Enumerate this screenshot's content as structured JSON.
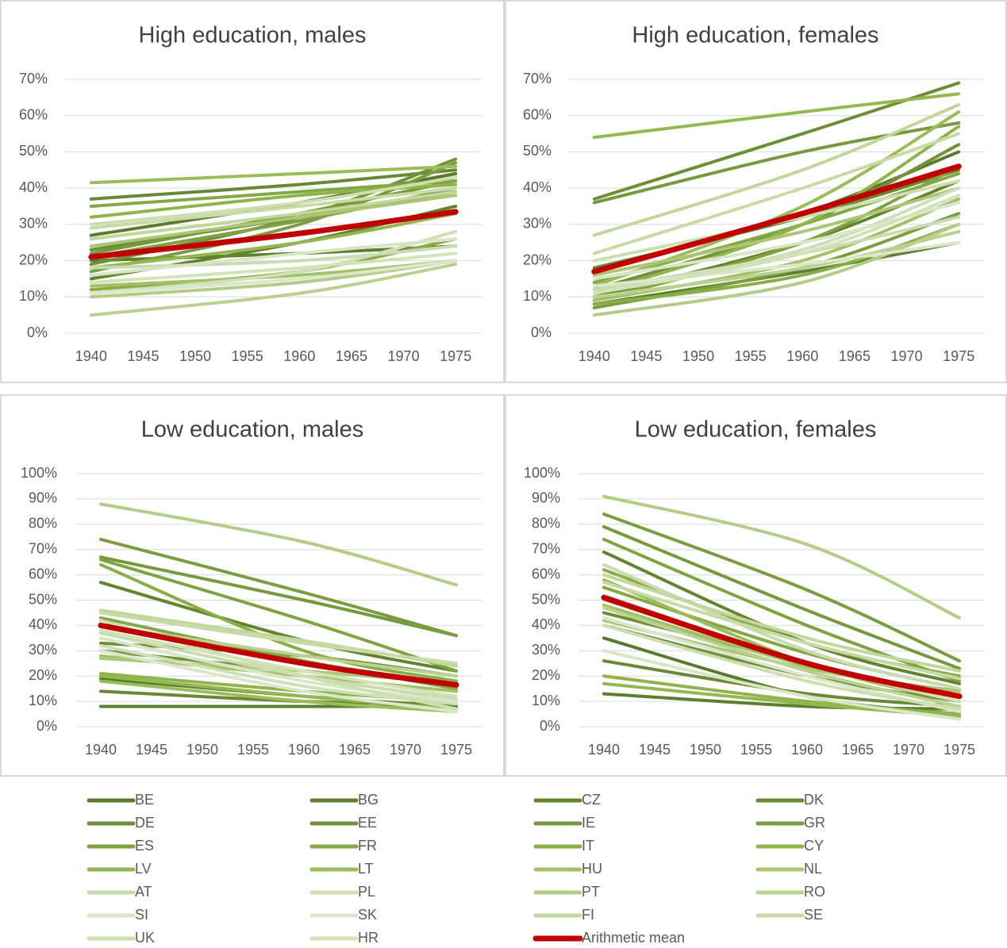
{
  "chart_data": [
    {
      "type": "line",
      "title": "High education, males",
      "x": [
        1940,
        1960,
        1975
      ],
      "xlim": [
        1937.5,
        1977.5
      ],
      "xticks": [
        1940,
        1945,
        1950,
        1955,
        1960,
        1965,
        1970,
        1975
      ],
      "ylim": [
        0,
        70
      ],
      "yticks": [
        {
          "value": 0,
          "label": "0%"
        },
        {
          "value": 10,
          "label": "10%"
        },
        {
          "value": 20,
          "label": "20%"
        },
        {
          "value": 30,
          "label": "30%"
        },
        {
          "value": 40,
          "label": "40%"
        },
        {
          "value": 50,
          "label": "50%"
        },
        {
          "value": 60,
          "label": "60%"
        },
        {
          "value": 70,
          "label": "70%"
        }
      ],
      "series": [
        {
          "values": [
            27,
            36,
            44
          ]
        },
        {
          "values": [
            20,
            22,
            24
          ]
        },
        {
          "values": [
            15,
            25,
            35
          ]
        },
        {
          "values": [
            37,
            41,
            45
          ]
        },
        {
          "values": [
            23,
            32,
            39
          ]
        },
        {
          "values": [
            19,
            32,
            48
          ]
        },
        {
          "values": [
            22,
            33,
            42
          ]
        },
        {
          "values": [
            17,
            30,
            47
          ]
        },
        {
          "values": [
            21,
            31,
            40
          ]
        },
        {
          "values": [
            35,
            39,
            42
          ]
        },
        {
          "values": [
            12,
            17,
            26
          ]
        },
        {
          "values": [
            32,
            38,
            41
          ]
        },
        {
          "values": [
            18,
            25,
            33
          ]
        },
        {
          "values": [
            41.5,
            44,
            46
          ]
        },
        {
          "values": [
            13,
            16,
            20
          ]
        },
        {
          "values": [
            24,
            32,
            38
          ]
        },
        {
          "values": [
            18,
            20,
            24
          ]
        },
        {
          "values": [
            11,
            17,
            28
          ]
        },
        {
          "values": [
            10,
            14,
            20
          ]
        },
        {
          "values": [
            5,
            11,
            19
          ]
        },
        {
          "values": [
            16,
            22,
            26
          ]
        },
        {
          "values": [
            11,
            15,
            20
          ]
        },
        {
          "values": [
            26,
            33,
            39
          ]
        },
        {
          "values": [
            29,
            35,
            40
          ]
        },
        {
          "values": [
            30,
            36,
            43
          ]
        },
        {
          "values": [
            14,
            18,
            22
          ]
        },
        {
          "values": [
            21,
            27.5,
            33.5
          ]
        }
      ]
    },
    {
      "type": "line",
      "title": "High education, females",
      "x": [
        1940,
        1960,
        1975
      ],
      "xlim": [
        1937.5,
        1977.5
      ],
      "xticks": [
        1940,
        1945,
        1950,
        1955,
        1960,
        1965,
        1970,
        1975
      ],
      "ylim": [
        0,
        70
      ],
      "yticks": [
        {
          "value": 0,
          "label": "0%"
        },
        {
          "value": 10,
          "label": "10%"
        },
        {
          "value": 20,
          "label": "20%"
        },
        {
          "value": 30,
          "label": "30%"
        },
        {
          "value": 40,
          "label": "40%"
        },
        {
          "value": 50,
          "label": "50%"
        },
        {
          "value": 60,
          "label": "60%"
        },
        {
          "value": 70,
          "label": "70%"
        }
      ],
      "series": [
        {
          "values": [
            17,
            33,
            50
          ]
        },
        {
          "values": [
            8,
            17,
            25
          ]
        },
        {
          "values": [
            10,
            25,
            42
          ]
        },
        {
          "values": [
            18,
            32,
            45
          ]
        },
        {
          "values": [
            37,
            55,
            69
          ]
        },
        {
          "values": [
            12,
            30,
            52
          ]
        },
        {
          "values": [
            36,
            50,
            58
          ]
        },
        {
          "values": [
            7,
            18,
            33
          ]
        },
        {
          "values": [
            9,
            25,
            46
          ]
        },
        {
          "values": [
            14,
            30,
            44
          ]
        },
        {
          "values": [
            8,
            16,
            30
          ]
        },
        {
          "values": [
            11,
            30,
            57
          ]
        },
        {
          "values": [
            54,
            61,
            66
          ]
        },
        {
          "values": [
            13,
            35,
            61
          ]
        },
        {
          "values": [
            9,
            20,
            37
          ]
        },
        {
          "values": [
            16,
            28,
            40
          ]
        },
        {
          "values": [
            12,
            22,
            32
          ]
        },
        {
          "values": [
            11,
            23,
            40
          ]
        },
        {
          "values": [
            5,
            14,
            30
          ]
        },
        {
          "values": [
            10,
            18,
            28
          ]
        },
        {
          "values": [
            15,
            25,
            36
          ]
        },
        {
          "values": [
            13,
            19,
            25
          ]
        },
        {
          "values": [
            27,
            45,
            63
          ]
        },
        {
          "values": [
            22,
            40,
            55
          ]
        },
        {
          "values": [
            20,
            32,
            42
          ]
        },
        {
          "values": [
            11,
            22,
            38
          ]
        },
        {
          "values": [
            17,
            33,
            46
          ]
        }
      ]
    },
    {
      "type": "line",
      "title": "Low education, males",
      "x": [
        1940,
        1960,
        1975
      ],
      "xlim": [
        1937.5,
        1977.5
      ],
      "xticks": [
        1940,
        1945,
        1950,
        1955,
        1960,
        1965,
        1970,
        1975
      ],
      "ylim": [
        0,
        100
      ],
      "yticks": [
        {
          "value": 0,
          "label": "0%"
        },
        {
          "value": 10,
          "label": "10%"
        },
        {
          "value": 20,
          "label": "20%"
        },
        {
          "value": 30,
          "label": "30%"
        },
        {
          "value": 40,
          "label": "40%"
        },
        {
          "value": 50,
          "label": "50%"
        },
        {
          "value": 60,
          "label": "60%"
        },
        {
          "value": 70,
          "label": "70%"
        },
        {
          "value": 80,
          "label": "80%"
        },
        {
          "value": 90,
          "label": "90%"
        },
        {
          "value": 100,
          "label": "100%"
        }
      ],
      "series": [
        {
          "values": [
            19,
            12,
            8
          ]
        },
        {
          "values": [
            8,
            8,
            8
          ]
        },
        {
          "values": [
            57,
            34,
            22
          ]
        },
        {
          "values": [
            14,
            10,
            9
          ]
        },
        {
          "values": [
            33,
            28,
            20
          ]
        },
        {
          "values": [
            30,
            22,
            18
          ]
        },
        {
          "values": [
            67,
            50,
            36
          ]
        },
        {
          "values": [
            74,
            53,
            36
          ]
        },
        {
          "values": [
            66,
            42,
            22
          ]
        },
        {
          "values": [
            43,
            26,
            15
          ]
        },
        {
          "values": [
            64,
            30,
            18
          ]
        },
        {
          "values": [
            21,
            14,
            10
          ]
        },
        {
          "values": [
            20,
            12,
            7
          ]
        },
        {
          "values": [
            18,
            10,
            6
          ]
        },
        {
          "values": [
            28,
            20,
            14
          ]
        },
        {
          "values": [
            27,
            22,
            17
          ]
        },
        {
          "values": [
            37,
            20,
            11
          ]
        },
        {
          "values": [
            32,
            16,
            9
          ]
        },
        {
          "values": [
            88,
            73,
            56
          ]
        },
        {
          "values": [
            40,
            28,
            20
          ]
        },
        {
          "values": [
            35,
            18,
            10
          ]
        },
        {
          "values": [
            30,
            14,
            6
          ]
        },
        {
          "values": [
            46,
            34,
            24
          ]
        },
        {
          "values": [
            45,
            33,
            25
          ]
        },
        {
          "values": [
            42,
            20,
            7
          ]
        },
        {
          "values": [
            38,
            22,
            12
          ]
        },
        {
          "values": [
            40,
            25,
            16.5
          ]
        }
      ]
    },
    {
      "type": "line",
      "title": "Low education, females",
      "x": [
        1940,
        1960,
        1975
      ],
      "xlim": [
        1937.5,
        1977.5
      ],
      "xticks": [
        1940,
        1945,
        1950,
        1955,
        1960,
        1965,
        1970,
        1975
      ],
      "ylim": [
        0,
        100
      ],
      "yticks": [
        {
          "value": 0,
          "label": "0%"
        },
        {
          "value": 10,
          "label": "10%"
        },
        {
          "value": 20,
          "label": "20%"
        },
        {
          "value": 30,
          "label": "30%"
        },
        {
          "value": 40,
          "label": "40%"
        },
        {
          "value": 50,
          "label": "50%"
        },
        {
          "value": 60,
          "label": "60%"
        },
        {
          "value": 70,
          "label": "70%"
        },
        {
          "value": 80,
          "label": "80%"
        },
        {
          "value": 90,
          "label": "90%"
        },
        {
          "value": 100,
          "label": "100%"
        }
      ],
      "series": [
        {
          "values": [
            35,
            12,
            5
          ]
        },
        {
          "values": [
            13,
            8,
            7
          ]
        },
        {
          "values": [
            69,
            33,
            17
          ]
        },
        {
          "values": [
            26,
            13,
            8
          ]
        },
        {
          "values": [
            45,
            25,
            12
          ]
        },
        {
          "values": [
            40,
            20,
            10
          ]
        },
        {
          "values": [
            79,
            46,
            23
          ]
        },
        {
          "values": [
            84,
            54,
            26
          ]
        },
        {
          "values": [
            74,
            40,
            18
          ]
        },
        {
          "values": [
            55,
            29,
            15
          ]
        },
        {
          "values": [
            62,
            33,
            20
          ]
        },
        {
          "values": [
            20,
            10,
            5
          ]
        },
        {
          "values": [
            17,
            9,
            4
          ]
        },
        {
          "values": [
            58,
            25,
            10
          ]
        },
        {
          "values": [
            48,
            24,
            12
          ]
        },
        {
          "values": [
            42,
            23,
            14
          ]
        },
        {
          "values": [
            64,
            30,
            15
          ]
        },
        {
          "values": [
            52,
            25,
            12
          ]
        },
        {
          "values": [
            91,
            72,
            43
          ]
        },
        {
          "values": [
            47,
            22,
            8
          ]
        },
        {
          "values": [
            30,
            12,
            3
          ]
        },
        {
          "values": [
            43,
            20,
            6
          ]
        },
        {
          "values": [
            60,
            35,
            22
          ]
        },
        {
          "values": [
            57,
            33,
            19
          ]
        },
        {
          "values": [
            40,
            18,
            7
          ]
        },
        {
          "values": [
            50,
            25,
            10
          ]
        },
        {
          "values": [
            51,
            25,
            12
          ]
        }
      ]
    }
  ],
  "legend": [
    {
      "name": "BE",
      "color": "#5a7a2e"
    },
    {
      "name": "BG",
      "color": "#5e7f30"
    },
    {
      "name": "CZ",
      "color": "#62842f"
    },
    {
      "name": "DK",
      "color": "#668a33"
    },
    {
      "name": "DE",
      "color": "#6b8f35"
    },
    {
      "name": "EE",
      "color": "#70933a"
    },
    {
      "name": "IE",
      "color": "#75993b"
    },
    {
      "name": "GR",
      "color": "#7a9e3e"
    },
    {
      "name": "ES",
      "color": "#7fa340"
    },
    {
      "name": "FR",
      "color": "#84a843"
    },
    {
      "name": "IT",
      "color": "#8aae47"
    },
    {
      "name": "CY",
      "color": "#8fb44b"
    },
    {
      "name": "LV",
      "color": "#94b850"
    },
    {
      "name": "LT",
      "color": "#9bbd58"
    },
    {
      "name": "HU",
      "color": "#a3c266"
    },
    {
      "name": "NL",
      "color": "#abc774"
    },
    {
      "name": "AT",
      "color": "#c9dbb0"
    },
    {
      "name": "PL",
      "color": "#cfdfb8"
    },
    {
      "name": "PT",
      "color": "#b3cc86"
    },
    {
      "name": "RO",
      "color": "#bad190"
    },
    {
      "name": "SI",
      "color": "#d8e6c6"
    },
    {
      "name": "SK",
      "color": "#dbe7ca"
    },
    {
      "name": "FI",
      "color": "#c2d79c"
    },
    {
      "name": "SE",
      "color": "#c8dba6"
    },
    {
      "name": "UK",
      "color": "#cddfaf"
    },
    {
      "name": "HR",
      "color": "#d3e3b8"
    },
    {
      "name": "Arithmetic mean",
      "color": "#c00000"
    }
  ]
}
